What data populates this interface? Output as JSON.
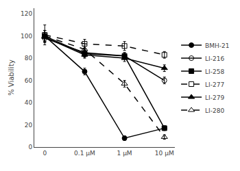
{
  "chart_data": {
    "type": "line",
    "y_label": "% Viability",
    "categories": [
      "0",
      "0.1 μM",
      "1 μM",
      "10 μM"
    ],
    "series": [
      {
        "name": "BMH-21",
        "color": "#000000",
        "marker": "circle",
        "line_style": "solid",
        "values": [
          100,
          68,
          8,
          17
        ],
        "errors": [
          5,
          3,
          2,
          2
        ]
      },
      {
        "name": "LI-216",
        "color": "#000000",
        "marker": "circle-open",
        "line_style": "solid",
        "values": [
          98,
          85,
          82,
          60
        ],
        "errors": [
          4,
          3,
          3,
          3
        ]
      },
      {
        "name": "LI-258",
        "color": "#000000",
        "marker": "square",
        "line_style": "solid",
        "values": [
          100,
          84,
          82,
          17
        ],
        "errors": [
          5,
          3,
          3,
          2
        ]
      },
      {
        "name": "LI-277",
        "color": "#000000",
        "marker": "square-open",
        "line_style": "dash",
        "values": [
          101,
          93,
          91,
          83
        ],
        "errors": [
          9,
          4,
          4,
          3
        ]
      },
      {
        "name": "LI-279",
        "color": "#000000",
        "marker": "triangle-up",
        "line_style": "solid",
        "values": [
          99,
          83,
          80,
          71
        ],
        "errors": [
          4,
          3,
          3,
          3
        ]
      },
      {
        "name": "LI-280",
        "color": "#000000",
        "marker": "triangle-up-open",
        "line_style": "dash",
        "values": [
          100,
          88,
          57,
          9
        ],
        "errors": [
          5,
          3,
          3,
          2
        ]
      }
    ],
    "ylim": [
      0,
      125
    ],
    "yticks": [
      0,
      20,
      40,
      60,
      80,
      100,
      120
    ],
    "grid": false,
    "legend": "right"
  }
}
